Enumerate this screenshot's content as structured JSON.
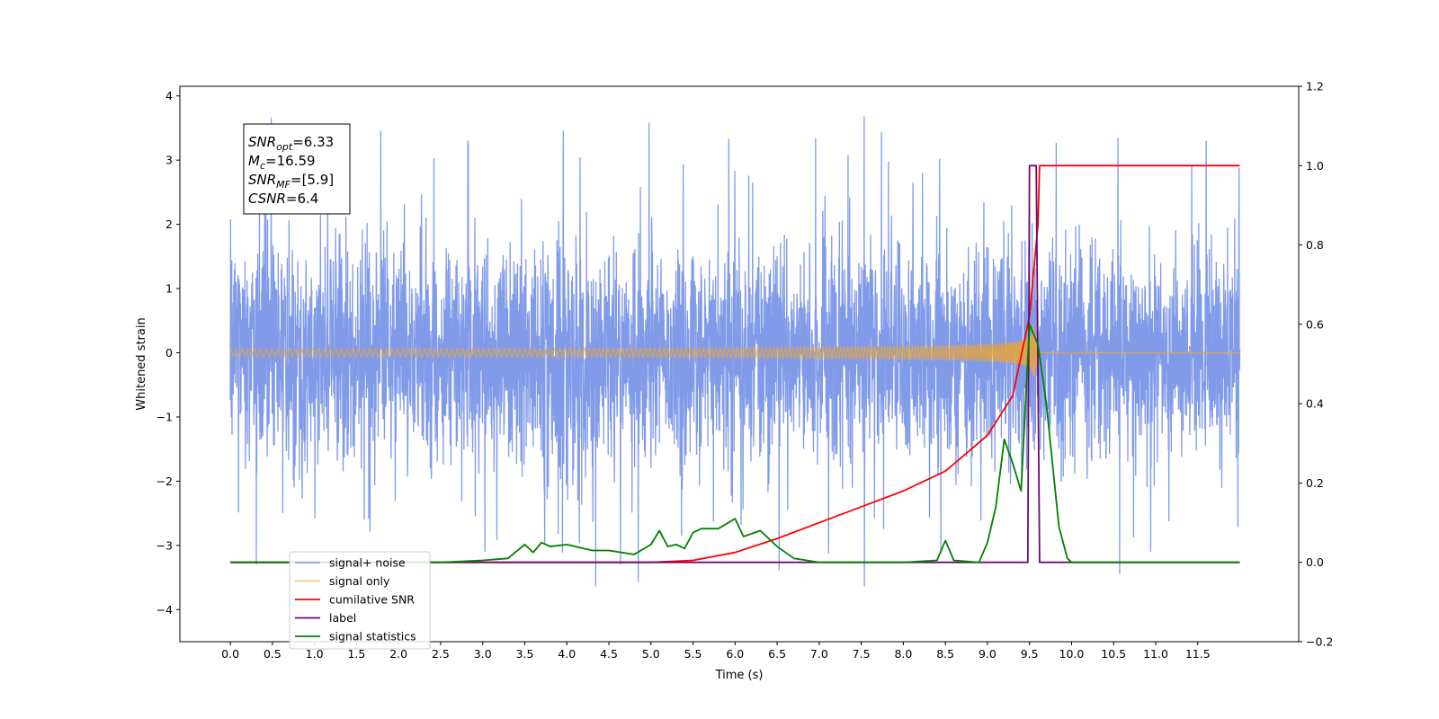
{
  "chart_data": {
    "type": "line",
    "xlabel": "Time (s)",
    "ylabel": "Whitened strain",
    "xlim": [
      -0.6,
      12.7
    ],
    "ylim_left": [
      -4.5,
      4.15
    ],
    "ylim_right": [
      -0.2,
      1.2
    ],
    "x_ticks": [
      "0.0",
      "0.5",
      "1.0",
      "1.5",
      "2.0",
      "2.5",
      "3.0",
      "3.5",
      "4.0",
      "4.5",
      "5.0",
      "5.5",
      "6.0",
      "6.5",
      "7.0",
      "7.5",
      "8.0",
      "8.5",
      "9.0",
      "9.5",
      "10.0",
      "10.5",
      "11.0",
      "11.5"
    ],
    "y_ticks_left": [
      "−4",
      "−3",
      "−2",
      "−1",
      "0",
      "1",
      "2",
      "3",
      "4"
    ],
    "y_ticks_right": [
      "−0.2",
      "0.0",
      "0.2",
      "0.4",
      "0.6",
      "0.8",
      "1.0",
      "1.2"
    ],
    "grid": false,
    "legend_position": "lower-left",
    "annotation": [
      {
        "base": "SNR",
        "sub": "opt",
        "value": "=6.33"
      },
      {
        "base": "M",
        "sub": "c",
        "value": "=16.59"
      },
      {
        "base": "SNR",
        "sub": "MF",
        "value": "=[5.9]"
      },
      {
        "base": "CSNR",
        "sub": "",
        "value": "=6.4"
      }
    ],
    "series": [
      {
        "name": "signal+ noise",
        "axis": "left",
        "color": "#7b96e8",
        "style": "noise",
        "x_range": [
          0.0,
          12.0
        ],
        "std": 0.85
      },
      {
        "name": "signal only",
        "axis": "left",
        "color": "#f5a623",
        "style": "chirp",
        "merger_time": 9.55,
        "end_time": 9.62,
        "peak_amplitude": 0.45
      },
      {
        "name": "cumilative SNR",
        "axis": "right",
        "x": [
          0.0,
          5.0,
          5.5,
          6.0,
          6.5,
          7.0,
          7.5,
          8.0,
          8.5,
          9.0,
          9.3,
          9.5,
          9.6,
          9.62,
          12.0
        ],
        "y": [
          0.0,
          0.0,
          0.005,
          0.025,
          0.06,
          0.1,
          0.14,
          0.18,
          0.23,
          0.32,
          0.42,
          0.62,
          0.85,
          1.0,
          1.0
        ],
        "color": "#ff0000"
      },
      {
        "name": "label",
        "axis": "right",
        "x": [
          0.0,
          9.48,
          9.5,
          9.58,
          9.62,
          12.0
        ],
        "y": [
          0.0,
          0.0,
          1.0,
          1.0,
          0.0,
          0.0
        ],
        "color": "#6a0d6e"
      },
      {
        "name": "signal statistics",
        "axis": "right",
        "x": [
          0.0,
          2.5,
          3.0,
          3.3,
          3.5,
          3.6,
          3.7,
          3.8,
          4.0,
          4.3,
          4.5,
          4.8,
          5.0,
          5.1,
          5.2,
          5.3,
          5.4,
          5.5,
          5.6,
          5.8,
          6.0,
          6.1,
          6.3,
          6.5,
          6.7,
          7.0,
          8.0,
          8.4,
          8.5,
          8.6,
          8.9,
          9.0,
          9.1,
          9.2,
          9.3,
          9.4,
          9.5,
          9.6,
          9.7,
          9.85,
          9.95,
          10.0,
          12.0
        ],
        "y": [
          0.0,
          0.0,
          0.005,
          0.01,
          0.045,
          0.025,
          0.05,
          0.04,
          0.045,
          0.03,
          0.03,
          0.02,
          0.045,
          0.08,
          0.04,
          0.045,
          0.035,
          0.075,
          0.085,
          0.085,
          0.11,
          0.065,
          0.08,
          0.04,
          0.01,
          0.0,
          0.0,
          0.005,
          0.055,
          0.005,
          0.0,
          0.05,
          0.14,
          0.31,
          0.25,
          0.18,
          0.6,
          0.55,
          0.4,
          0.09,
          0.01,
          0.0,
          0.0
        ],
        "color": "#008000"
      }
    ]
  }
}
